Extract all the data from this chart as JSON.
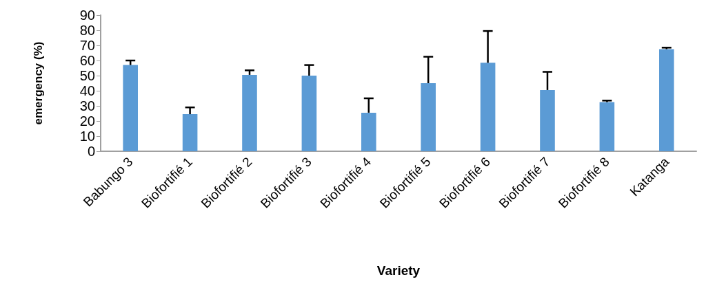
{
  "chart_data": {
    "type": "bar",
    "xlabel": "Variety",
    "ylabel": "emergency (%)",
    "categories": [
      "Babungo 3",
      "Biofortifié 1",
      "Biofortifié 2",
      "Biofortifié 3",
      "Biofortifié 4",
      "Biofortifié 5",
      "Biofortifié 6",
      "Biofortifié 7",
      "Biofortifié 8",
      "Katanga"
    ],
    "values": [
      57,
      24.5,
      50.5,
      50,
      25.5,
      45,
      58.5,
      40.5,
      32.5,
      67.5
    ],
    "errors": [
      [
        57,
        60
      ],
      [
        24.5,
        29
      ],
      [
        50.5,
        53.5
      ],
      [
        50,
        57
      ],
      [
        25.5,
        35
      ],
      [
        45,
        62.5
      ],
      [
        58.5,
        79.5
      ],
      [
        40.5,
        52.5
      ],
      [
        32.5,
        33.5
      ],
      [
        67.5,
        68.5
      ]
    ],
    "color": "#5b9bd5",
    "ylim": [
      0,
      90
    ],
    "yticks": [
      0,
      10,
      20,
      30,
      40,
      50,
      60,
      70,
      80,
      90
    ],
    "grid": false
  }
}
